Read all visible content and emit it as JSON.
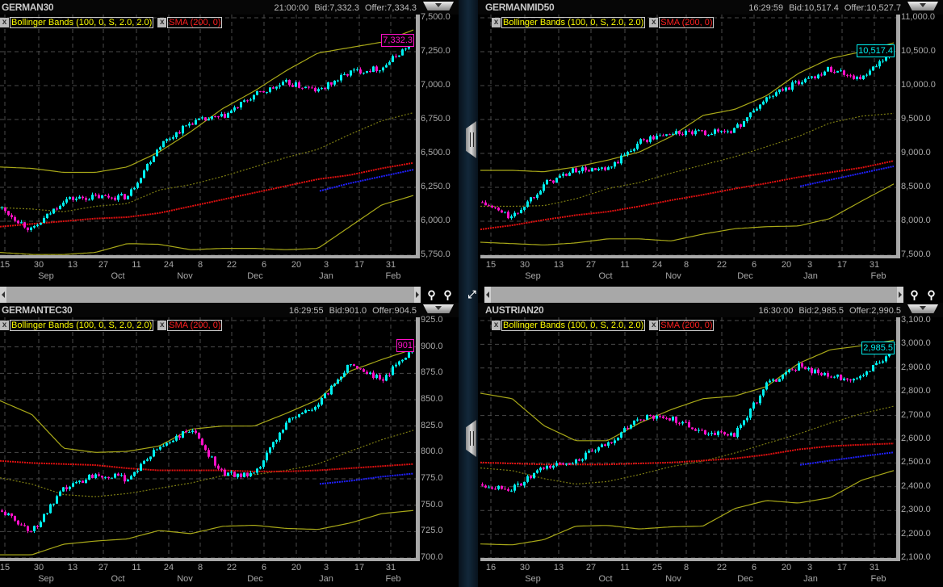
{
  "legend": {
    "bollinger": "Bollinger Bands (100, 0, S, 2.0, 2.0)",
    "sma": "SMA (200, 0)",
    "remove_glyph": "x"
  },
  "colors": {
    "up": "#00f0f0",
    "down": "#ff10c8",
    "bb_band": "#a8a818",
    "bb_mid": "#7c7c12",
    "sma": "#e01010",
    "sma_blue": "#2020ff",
    "grid": "#4a4a4a"
  },
  "chart_data": [
    {
      "type": "candlestick",
      "title": "GERMAN30",
      "time": "21:00:00",
      "bid": "Bid:7,332.3",
      "offer": "Offer:7,334.3",
      "last_label": "7,332.3",
      "last_value": 7332.3,
      "last_color": "#ff10c8",
      "ylim": [
        5750,
        7500
      ],
      "y_tick_labels": [
        "7,500.0",
        "7,250.0",
        "7,000.0",
        "6,750.0",
        "6,500.0",
        "6,250.0",
        "6,000.0",
        "5,750.0"
      ],
      "x_day_labels": [
        "15",
        "30",
        "13",
        "27",
        "11",
        "24",
        "8",
        "22",
        "6",
        "20",
        "3",
        "17",
        "31"
      ],
      "x_month_labels": [
        "Sep",
        "Oct",
        "Nov",
        "Dec",
        "Jan",
        "Feb"
      ],
      "close": [
        6100,
        5930,
        6160,
        6180,
        6180,
        6560,
        6730,
        6770,
        6930,
        7020,
        6960,
        7100,
        7130,
        7330
      ],
      "bb_upper": [
        6400,
        6390,
        6360,
        6360,
        6400,
        6510,
        6660,
        6830,
        6960,
        7110,
        7240,
        7280,
        7320,
        7410
      ],
      "bb_middle": [
        6100,
        6090,
        6070,
        6110,
        6130,
        6230,
        6270,
        6330,
        6400,
        6470,
        6530,
        6640,
        6740,
        6800
      ],
      "bb_lower": [
        5770,
        5755,
        5755,
        5770,
        5835,
        5830,
        5790,
        5800,
        5800,
        5790,
        5800,
        5960,
        6120,
        6190
      ],
      "sma_200": [
        5960,
        5980,
        6000,
        6020,
        6030,
        6060,
        6110,
        6160,
        6210,
        6260,
        6310,
        6340,
        6390,
        6430
      ],
      "sma_blue": [
        null,
        null,
        null,
        null,
        null,
        null,
        null,
        null,
        null,
        null,
        6220,
        6280,
        6330,
        6380
      ]
    },
    {
      "type": "candlestick",
      "title": "GERMANMID50",
      "time": "16:29:59",
      "bid": "Bid:10,517.4",
      "offer": "Offer:10,527.7",
      "last_label": "10,517.4",
      "last_value": 10517.4,
      "last_color": "#00f0f0",
      "ylim": [
        7500,
        11000
      ],
      "y_tick_labels": [
        "11,000.0",
        "10,500.0",
        "10,000.0",
        "9,500.0",
        "9,000.0",
        "8,500.0",
        "8,000.0",
        "7,500.0"
      ],
      "x_day_labels": [
        "15",
        "30",
        "13",
        "27",
        "11",
        "24",
        "8",
        "22",
        "6",
        "20",
        "3",
        "17",
        "31"
      ],
      "x_month_labels": [
        "Sep",
        "Oct",
        "Nov",
        "Dec",
        "Jan",
        "Feb"
      ],
      "close": [
        8280,
        8050,
        8550,
        8760,
        8750,
        9180,
        9300,
        9300,
        9350,
        9820,
        10050,
        10250,
        10100,
        10517
      ],
      "bb_upper": [
        8750,
        8750,
        8730,
        8800,
        8900,
        9020,
        9250,
        9560,
        9650,
        9850,
        10180,
        10400,
        10500,
        10630
      ],
      "bb_middle": [
        8220,
        8220,
        8230,
        8330,
        8480,
        8570,
        8710,
        8830,
        8950,
        9100,
        9250,
        9450,
        9550,
        9590
      ],
      "bb_lower": [
        7690,
        7670,
        7650,
        7680,
        7740,
        7740,
        7710,
        7810,
        7890,
        7920,
        7930,
        8040,
        8300,
        8550
      ],
      "sma_200": [
        7880,
        7940,
        8020,
        8090,
        8140,
        8220,
        8310,
        8390,
        8480,
        8560,
        8650,
        8720,
        8790,
        8890
      ],
      "sma_blue": [
        null,
        null,
        null,
        null,
        null,
        null,
        null,
        null,
        null,
        null,
        8510,
        8610,
        8710,
        8810
      ]
    },
    {
      "type": "candlestick",
      "title": "GERMANTEC30",
      "time": "16:29:55",
      "bid": "Bid:901.0",
      "offer": "Offer:904.5",
      "last_label": "901",
      "last_value": 901,
      "last_color": "#ff10c8",
      "ylim": [
        700,
        925
      ],
      "y_tick_labels": [
        "925.0",
        "900.0",
        "875.0",
        "850.0",
        "825.0",
        "800.0",
        "775.0",
        "750.0",
        "725.0",
        "700.0"
      ],
      "x_day_labels": [
        "15",
        "30",
        "13",
        "27",
        "11",
        "24",
        "8",
        "22",
        "6",
        "20",
        "3",
        "17",
        "31"
      ],
      "x_month_labels": [
        "Sep",
        "Oct",
        "Nov",
        "Dec",
        "Jan",
        "Feb"
      ],
      "close": [
        745,
        725,
        765,
        780,
        775,
        805,
        822,
        780,
        778,
        830,
        845,
        885,
        868,
        901
      ],
      "bb_upper": [
        849,
        836,
        804,
        800,
        801,
        806,
        822,
        825,
        825,
        837,
        850,
        877,
        888,
        898
      ],
      "bb_middle": [
        776,
        770,
        760,
        758,
        761,
        766,
        771,
        778,
        779,
        783,
        789,
        801,
        812,
        821
      ],
      "bb_lower": [
        703,
        703,
        713,
        716,
        718,
        726,
        723,
        730,
        731,
        728,
        727,
        733,
        742,
        745
      ],
      "sma_200": [
        792,
        790,
        789,
        788,
        785,
        783,
        783,
        783,
        782,
        782,
        783,
        785,
        787,
        789
      ],
      "sma_blue": [
        null,
        null,
        null,
        null,
        null,
        null,
        null,
        null,
        null,
        null,
        770,
        773,
        777,
        780
      ]
    },
    {
      "type": "candlestick",
      "title": "AUSTRIAN20",
      "time": "16:30:00",
      "bid": "Bid:2,985.5",
      "offer": "Offer:2,990.5",
      "last_label": "2,985.5",
      "last_value": 2985.5,
      "last_color": "#00f0f0",
      "ylim": [
        2100,
        3100
      ],
      "y_tick_labels": [
        "3,100.0",
        "3,000.0",
        "2,900.0",
        "2,800.0",
        "2,700.0",
        "2,600.0",
        "2,500.0",
        "2,400.0",
        "2,300.0",
        "2,200.0",
        "2,100.0"
      ],
      "x_day_labels": [
        "16",
        "30",
        "13",
        "27",
        "11",
        "25",
        "8",
        "22",
        "6",
        "20",
        "3",
        "17",
        "31"
      ],
      "x_month_labels": [
        "Sep",
        "Oct",
        "Nov",
        "Dec",
        "Jan",
        "Feb"
      ],
      "close": [
        2410,
        2390,
        2480,
        2510,
        2580,
        2690,
        2690,
        2630,
        2620,
        2830,
        2910,
        2860,
        2860,
        2985
      ],
      "bb_upper": [
        2794,
        2771,
        2657,
        2594,
        2594,
        2668,
        2725,
        2771,
        2782,
        2822,
        2919,
        2977,
        2994,
        3017
      ],
      "bb_middle": [
        2479,
        2468,
        2434,
        2411,
        2422,
        2451,
        2485,
        2508,
        2542,
        2582,
        2622,
        2668,
        2708,
        2739
      ],
      "bb_lower": [
        2159,
        2155,
        2177,
        2234,
        2237,
        2222,
        2231,
        2234,
        2308,
        2342,
        2331,
        2354,
        2428,
        2468
      ],
      "sma_200": [
        2502,
        2498,
        2494,
        2494,
        2494,
        2498,
        2502,
        2510,
        2519,
        2535,
        2557,
        2571,
        2577,
        2582
      ],
      "sma_blue": [
        null,
        null,
        null,
        null,
        null,
        null,
        null,
        null,
        null,
        null,
        2491,
        2510,
        2528,
        2545
      ]
    }
  ]
}
